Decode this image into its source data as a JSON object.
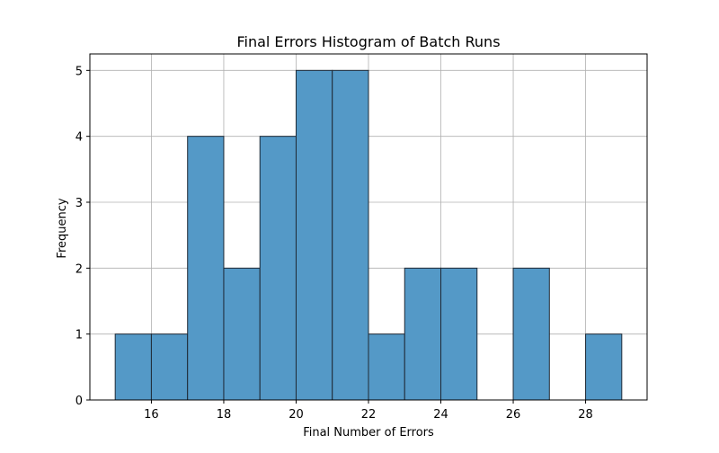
{
  "chart_data": {
    "type": "histogram",
    "title": "Final Errors Histogram of Batch Runs",
    "xlabel": "Final Number of Errors",
    "ylabel": "Frequency",
    "xlim": [
      14.3,
      29.7
    ],
    "ylim": [
      0,
      5.25
    ],
    "xticks": [
      16,
      18,
      20,
      22,
      24,
      26,
      28
    ],
    "yticks": [
      0,
      1,
      2,
      3,
      4,
      5
    ],
    "grid": true,
    "bins": [
      {
        "start": 15,
        "end": 16,
        "count": 1
      },
      {
        "start": 16,
        "end": 17,
        "count": 1
      },
      {
        "start": 17,
        "end": 18,
        "count": 4
      },
      {
        "start": 18,
        "end": 19,
        "count": 2
      },
      {
        "start": 19,
        "end": 20,
        "count": 4
      },
      {
        "start": 20,
        "end": 21,
        "count": 5
      },
      {
        "start": 21,
        "end": 22,
        "count": 5
      },
      {
        "start": 22,
        "end": 23,
        "count": 1
      },
      {
        "start": 23,
        "end": 24,
        "count": 2
      },
      {
        "start": 24,
        "end": 25,
        "count": 2
      },
      {
        "start": 25,
        "end": 26,
        "count": 0
      },
      {
        "start": 26,
        "end": 27,
        "count": 2
      },
      {
        "start": 27,
        "end": 28,
        "count": 0
      },
      {
        "start": 28,
        "end": 29,
        "count": 1
      }
    ],
    "bar_color": "#5499c7",
    "edge_color": "#1f2a36",
    "grid_color": "#b0b0b0"
  }
}
